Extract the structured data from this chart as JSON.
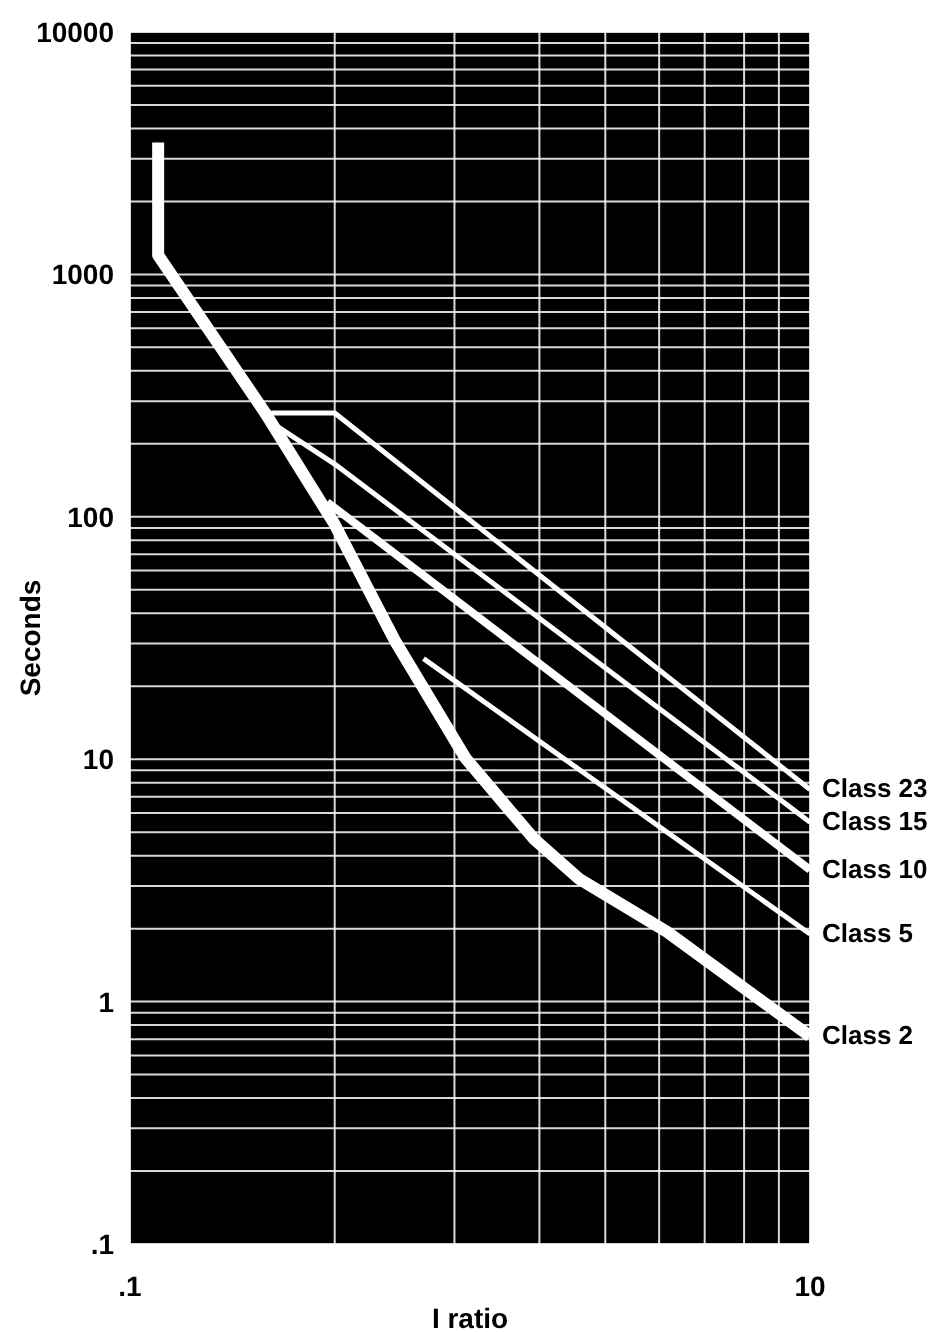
{
  "chart_data": {
    "type": "line",
    "xlabel": "I ratio",
    "ylabel": "Seconds",
    "log": "xy",
    "grid": true,
    "legend": false,
    "marker": "none",
    "line_style": "solid",
    "xlim": [
      0.1,
      10
    ],
    "xticks": [
      {
        "value": 0.1,
        "label": ".1"
      },
      {
        "value": 0.4,
        "label": null
      },
      {
        "value": 0.9,
        "label": null
      },
      {
        "value": 1.6,
        "label": null
      },
      {
        "value": 2.5,
        "label": null
      },
      {
        "value": 3.6,
        "label": null
      },
      {
        "value": 4.9,
        "label": null
      },
      {
        "value": 6.4,
        "label": null
      },
      {
        "value": 8.1,
        "label": null
      },
      10
    ],
    "ylim": [
      0.1,
      10000
    ],
    "yticks": [
      {
        "value": 0.1,
        "label": ".1"
      },
      1,
      10,
      100,
      1000,
      10000
    ],
    "series": [
      {
        "name": "Class 23",
        "color": "#ffffff",
        "x": [
          0.26,
          0.4,
          10
        ],
        "values": [
          268,
          268,
          7.5
        ]
      },
      {
        "name": "Class 15",
        "color": "#ffffff",
        "x": [
          0.26,
          0.4,
          10
        ],
        "values": [
          245,
          165,
          5.5
        ]
      },
      {
        "name": "Class 10",
        "color": "#ffffff",
        "x": [
          0.38,
          10
        ],
        "values": [
          115,
          3.5
        ]
      },
      {
        "name": "Class 5",
        "color": "#ffffff",
        "x": [
          0.73,
          10
        ],
        "values": [
          26,
          1.9
        ]
      },
      {
        "name": "Class 2",
        "color": "#ffffff",
        "x": [
          0.121,
          0.121,
          0.25,
          0.4,
          0.6,
          0.97,
          1.54,
          2.1,
          3.8,
          10
        ],
        "values": [
          3500,
          1200,
          268,
          93,
          31,
          10.1,
          4.7,
          3.2,
          1.94,
          0.72
        ]
      }
    ]
  }
}
